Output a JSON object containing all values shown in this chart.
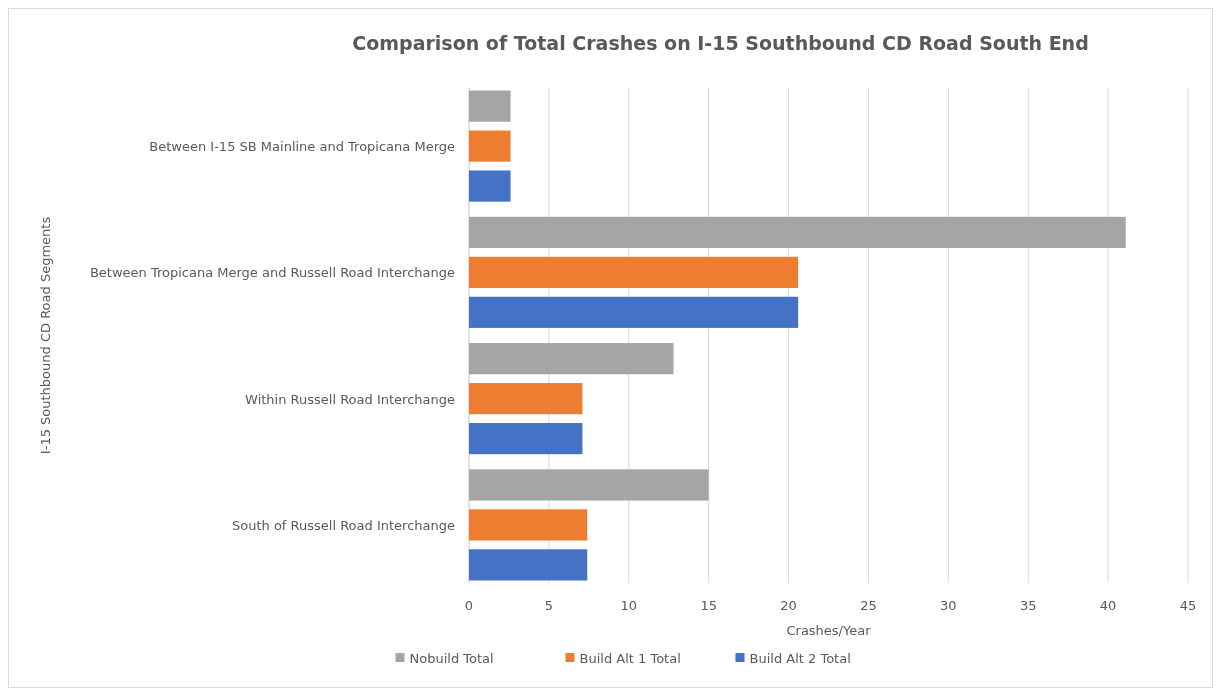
{
  "chart_data": {
    "type": "bar",
    "orientation": "horizontal",
    "title": "Comparison of Total Crashes on I-15 Southbound CD Road South End",
    "xlabel": "Crashes/Year",
    "ylabel": "I-15 Southbound CD Road Segments",
    "categories": [
      "Between I-15 SB Mainline and Tropicana Merge",
      "Between Tropicana Merge and Russell Road Interchange",
      "Within Russell Road Interchange",
      "South of Russell Road Interchange"
    ],
    "series": [
      {
        "name": "Nobuild Total",
        "color": "#a5a5a5",
        "values": [
          2.6,
          41.1,
          12.8,
          15.0
        ]
      },
      {
        "name": "Build Alt 1 Total",
        "color": "#ed7d31",
        "values": [
          2.6,
          20.6,
          7.1,
          7.4
        ]
      },
      {
        "name": "Build Alt 2 Total",
        "color": "#4472c4",
        "values": [
          2.6,
          20.6,
          7.1,
          7.4
        ]
      }
    ],
    "xlim": [
      0,
      45
    ],
    "xticks": [
      0,
      5,
      10,
      15,
      20,
      25,
      30,
      35,
      40,
      45
    ],
    "grid": "x",
    "legend": "bottom"
  }
}
